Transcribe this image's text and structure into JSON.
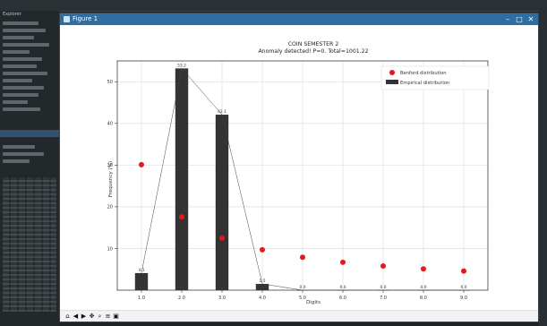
{
  "window": {
    "title": "Figure 1",
    "controls": {
      "minimize": "–",
      "maximize": "□",
      "close": "✕"
    }
  },
  "toolbar": {
    "buttons": [
      {
        "name": "home",
        "glyph": "⌂"
      },
      {
        "name": "back",
        "glyph": "◀"
      },
      {
        "name": "forward",
        "glyph": "▶"
      },
      {
        "name": "pan",
        "glyph": "✥"
      },
      {
        "name": "zoom",
        "glyph": "⌕"
      },
      {
        "name": "configure",
        "glyph": "≡"
      },
      {
        "name": "save",
        "glyph": "▣"
      }
    ],
    "coords": ""
  },
  "ide": {
    "sidebar_title": "Explorer"
  },
  "chart_data": {
    "type": "bar",
    "title_line1": "COIN SEMESTER 2",
    "title_line2": "Anomaly detected! P=0. Total=1001.22",
    "xlabel": "Digits",
    "ylabel": "Frequency (%)",
    "categories": [
      "1.0",
      "2.0",
      "3.0",
      "4.0",
      "5.0",
      "6.0",
      "7.0",
      "8.0",
      "9.0"
    ],
    "x_values": [
      1,
      2,
      3,
      4,
      5,
      6,
      7,
      8,
      9
    ],
    "ylim": [
      0,
      55
    ],
    "yticks": [
      10,
      20,
      30,
      40,
      50
    ],
    "grid": true,
    "legend_position": "top-right",
    "legend": [
      "Benford distribution",
      "Empirical distribution"
    ],
    "series": [
      {
        "name": "Empirical distribution",
        "kind": "bar",
        "values": [
          4.1,
          53.2,
          42.1,
          1.5,
          0.0,
          0.0,
          0.0,
          0.0,
          0.0
        ],
        "labels": [
          "4.1",
          "53.2",
          "42.1",
          "1.5",
          "0.0",
          "0.0",
          "0.0",
          "0.0",
          "0.0"
        ],
        "color": "#333333"
      },
      {
        "name": "Benford distribution",
        "kind": "scatter",
        "values": [
          30.1,
          17.6,
          12.5,
          9.7,
          7.9,
          6.7,
          5.8,
          5.1,
          4.6
        ],
        "color": "#e3191b"
      }
    ],
    "line_color": "#444444"
  }
}
